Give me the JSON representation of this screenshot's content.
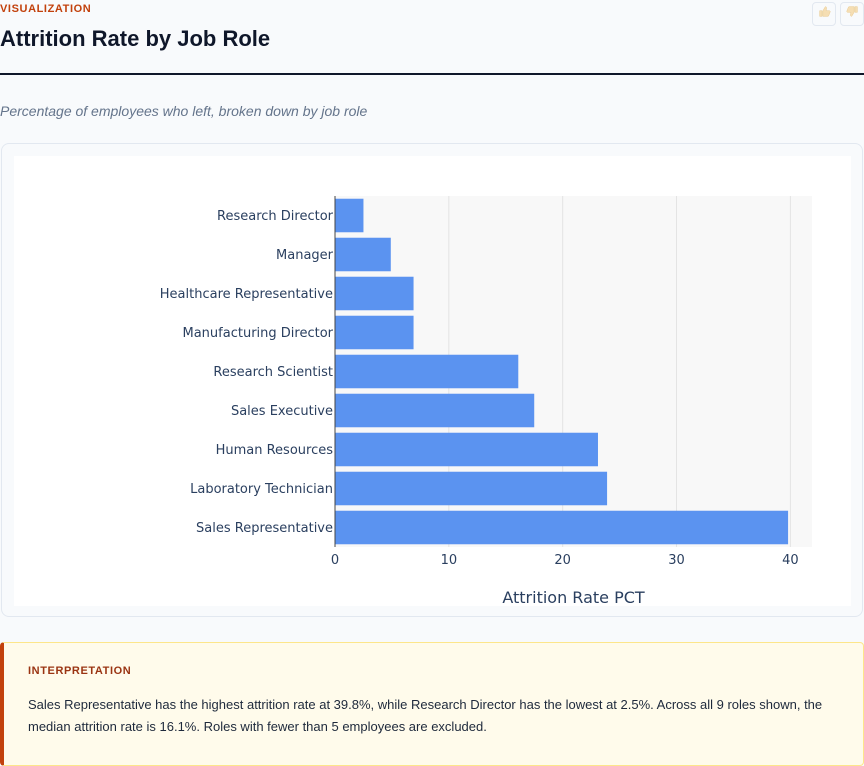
{
  "header": {
    "eyebrow": "VISUALIZATION",
    "title": "Attrition Rate by Job Role",
    "subtitle": "Percentage of employees who left, broken down by job role"
  },
  "feedback": {
    "up_icon": "thumbs-up-icon",
    "down_icon": "thumbs-down-icon"
  },
  "chart_data": {
    "type": "bar",
    "orientation": "horizontal",
    "categories": [
      "Research Director",
      "Manager",
      "Healthcare Representative",
      "Manufacturing Director",
      "Research Scientist",
      "Sales Executive",
      "Human Resources",
      "Laboratory Technician",
      "Sales Representative"
    ],
    "values": [
      2.5,
      4.9,
      6.9,
      6.9,
      16.1,
      17.5,
      23.1,
      23.9,
      39.8
    ],
    "xlabel": "Attrition Rate PCT",
    "ylabel": "",
    "xlim": [
      0,
      41.9
    ],
    "xticks": [
      0,
      10,
      20,
      30,
      40
    ],
    "xtick_labels": [
      "0",
      "10",
      "20",
      "30",
      "40"
    ],
    "grid": true,
    "bar_color": "#5b93f0",
    "plot_bg": "#f8f8f8"
  },
  "interpretation": {
    "label": "INTERPRETATION",
    "text": "Sales Representative has the highest attrition rate at 39.8%, while Research Director has the lowest at 2.5%. Across all 9 roles shown, the median attrition rate is 16.1%. Roles with fewer than 5 employees are excluded."
  }
}
